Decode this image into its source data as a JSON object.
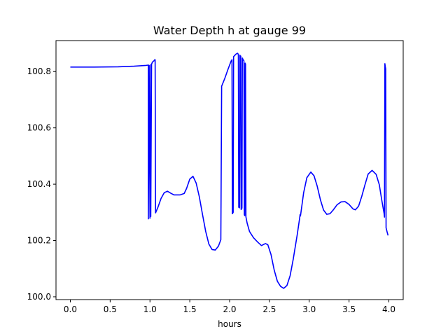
{
  "chart_data": {
    "type": "line",
    "title": "Water Depth h at gauge 99",
    "xlabel": "hours",
    "ylabel": "",
    "xlim": [
      -0.18,
      4.18
    ],
    "ylim": [
      99.99,
      100.91
    ],
    "x_ticks": [
      0.0,
      0.5,
      1.0,
      1.5,
      2.0,
      2.5,
      3.0,
      3.5,
      4.0
    ],
    "x_tick_labels": [
      "0.0",
      "0.5",
      "1.0",
      "1.5",
      "2.0",
      "2.5",
      "3.0",
      "3.5",
      "4.0"
    ],
    "y_ticks": [
      100.0,
      100.2,
      100.4,
      100.6,
      100.8
    ],
    "y_tick_labels": [
      "100.0",
      "100.2",
      "100.4",
      "100.6",
      "100.8"
    ],
    "grid": false,
    "series": [
      {
        "color": "#0000ff",
        "points": [
          [
            0.0,
            100.816
          ],
          [
            0.3,
            100.816
          ],
          [
            0.6,
            100.817
          ],
          [
            0.8,
            100.819
          ],
          [
            0.95,
            100.822
          ],
          [
            0.98,
            100.823
          ],
          [
            0.98,
            100.277
          ],
          [
            0.99,
            100.822
          ],
          [
            1.0,
            100.279
          ],
          [
            1.01,
            100.824
          ],
          [
            1.01,
            100.285
          ],
          [
            1.02,
            100.826
          ],
          [
            1.03,
            100.833
          ],
          [
            1.04,
            100.836
          ],
          [
            1.05,
            100.838
          ],
          [
            1.06,
            100.842
          ],
          [
            1.065,
            100.842
          ],
          [
            1.07,
            100.298
          ],
          [
            1.1,
            100.318
          ],
          [
            1.14,
            100.35
          ],
          [
            1.18,
            100.37
          ],
          [
            1.22,
            100.375
          ],
          [
            1.26,
            100.368
          ],
          [
            1.3,
            100.362
          ],
          [
            1.38,
            100.362
          ],
          [
            1.43,
            100.367
          ],
          [
            1.46,
            100.385
          ],
          [
            1.5,
            100.418
          ],
          [
            1.54,
            100.428
          ],
          [
            1.58,
            100.404
          ],
          [
            1.62,
            100.355
          ],
          [
            1.66,
            100.292
          ],
          [
            1.7,
            100.232
          ],
          [
            1.74,
            100.187
          ],
          [
            1.78,
            100.168
          ],
          [
            1.82,
            100.166
          ],
          [
            1.86,
            100.18
          ],
          [
            1.89,
            100.203
          ],
          [
            1.9,
            100.748
          ],
          [
            1.94,
            100.776
          ],
          [
            1.98,
            100.808
          ],
          [
            2.02,
            100.838
          ],
          [
            2.03,
            100.842
          ],
          [
            2.035,
            100.295
          ],
          [
            2.045,
            100.3
          ],
          [
            2.05,
            100.853
          ],
          [
            2.08,
            100.862
          ],
          [
            2.1,
            100.865
          ],
          [
            2.11,
            100.861
          ],
          [
            2.115,
            100.318
          ],
          [
            2.125,
            100.316
          ],
          [
            2.13,
            100.858
          ],
          [
            2.135,
            100.853
          ],
          [
            2.14,
            100.855
          ],
          [
            2.145,
            100.31
          ],
          [
            2.155,
            100.315
          ],
          [
            2.16,
            100.848
          ],
          [
            2.17,
            100.842
          ],
          [
            2.18,
            100.838
          ],
          [
            2.185,
            100.292
          ],
          [
            2.19,
            100.288
          ],
          [
            2.195,
            100.83
          ],
          [
            2.2,
            100.826
          ],
          [
            2.205,
            100.284
          ],
          [
            2.22,
            100.262
          ],
          [
            2.25,
            100.232
          ],
          [
            2.3,
            100.21
          ],
          [
            2.35,
            100.195
          ],
          [
            2.4,
            100.182
          ],
          [
            2.45,
            100.189
          ],
          [
            2.48,
            100.185
          ],
          [
            2.52,
            100.15
          ],
          [
            2.56,
            100.095
          ],
          [
            2.6,
            100.055
          ],
          [
            2.64,
            100.037
          ],
          [
            2.68,
            100.03
          ],
          [
            2.72,
            100.04
          ],
          [
            2.76,
            100.075
          ],
          [
            2.8,
            100.135
          ],
          [
            2.85,
            100.222
          ],
          [
            2.88,
            100.28
          ],
          [
            2.885,
            100.292
          ],
          [
            2.89,
            100.287
          ],
          [
            2.93,
            100.37
          ],
          [
            2.97,
            100.423
          ],
          [
            3.02,
            100.443
          ],
          [
            3.06,
            100.43
          ],
          [
            3.1,
            100.393
          ],
          [
            3.14,
            100.345
          ],
          [
            3.18,
            100.308
          ],
          [
            3.22,
            100.293
          ],
          [
            3.26,
            100.295
          ],
          [
            3.3,
            100.308
          ],
          [
            3.35,
            100.327
          ],
          [
            3.4,
            100.337
          ],
          [
            3.45,
            100.338
          ],
          [
            3.5,
            100.328
          ],
          [
            3.55,
            100.312
          ],
          [
            3.58,
            100.309
          ],
          [
            3.62,
            100.322
          ],
          [
            3.66,
            100.357
          ],
          [
            3.7,
            100.398
          ],
          [
            3.74,
            100.436
          ],
          [
            3.79,
            100.449
          ],
          [
            3.84,
            100.435
          ],
          [
            3.88,
            100.398
          ],
          [
            3.91,
            100.345
          ],
          [
            3.94,
            100.296
          ],
          [
            3.945,
            100.283
          ],
          [
            3.95,
            100.828
          ],
          [
            3.955,
            100.818
          ],
          [
            3.96,
            100.81
          ],
          [
            3.965,
            100.245
          ],
          [
            3.98,
            100.228
          ],
          [
            3.99,
            100.218
          ]
        ]
      }
    ]
  }
}
